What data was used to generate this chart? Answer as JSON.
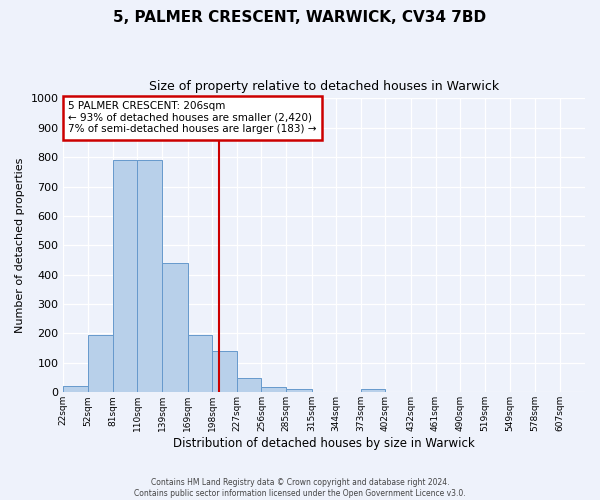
{
  "title": "5, PALMER CRESCENT, WARWICK, CV34 7BD",
  "subtitle": "Size of property relative to detached houses in Warwick",
  "xlabel": "Distribution of detached houses by size in Warwick",
  "ylabel": "Number of detached properties",
  "bar_color": "#b8d0ea",
  "bar_edge_color": "#6699cc",
  "bg_color": "#eef2fb",
  "grid_color": "#ffffff",
  "bin_labels": [
    "22sqm",
    "52sqm",
    "81sqm",
    "110sqm",
    "139sqm",
    "169sqm",
    "198sqm",
    "227sqm",
    "256sqm",
    "285sqm",
    "315sqm",
    "344sqm",
    "373sqm",
    "402sqm",
    "432sqm",
    "461sqm",
    "490sqm",
    "519sqm",
    "549sqm",
    "578sqm",
    "607sqm"
  ],
  "bin_edges": [
    22,
    52,
    81,
    110,
    139,
    169,
    198,
    227,
    256,
    285,
    315,
    344,
    373,
    402,
    432,
    461,
    490,
    519,
    549,
    578,
    607
  ],
  "counts": [
    20,
    195,
    790,
    790,
    440,
    195,
    140,
    50,
    18,
    10,
    0,
    0,
    10,
    0,
    0,
    0,
    0,
    0,
    0,
    0
  ],
  "property_size": 206,
  "vline_color": "#cc0000",
  "annotation_text_line1": "5 PALMER CRESCENT: 206sqm",
  "annotation_text_line2": "← 93% of detached houses are smaller (2,420)",
  "annotation_text_line3": "7% of semi-detached houses are larger (183) →",
  "annotation_box_color": "#cc0000",
  "ylim": [
    0,
    1000
  ],
  "yticks": [
    0,
    100,
    200,
    300,
    400,
    500,
    600,
    700,
    800,
    900,
    1000
  ],
  "footer_line1": "Contains HM Land Registry data © Crown copyright and database right 2024.",
  "footer_line2": "Contains public sector information licensed under the Open Government Licence v3.0."
}
